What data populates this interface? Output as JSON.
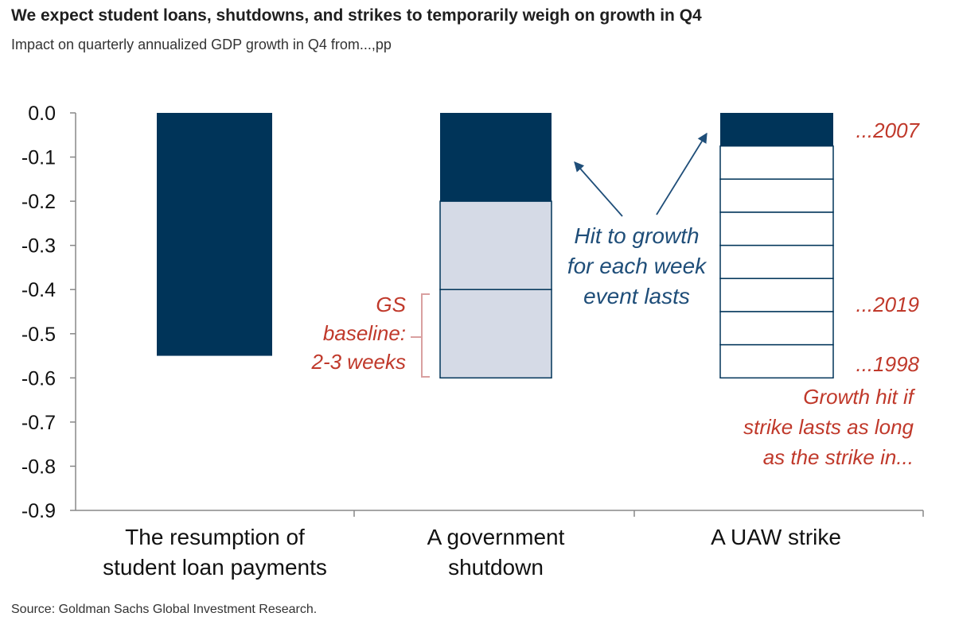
{
  "title": "We expect student loans, shutdowns, and strikes to temporarily weigh on growth in Q4",
  "subtitle": "Impact on quarterly annualized GDP growth in Q4 from...,pp",
  "source": "Source: Goldman Sachs Global Investment Research.",
  "colors": {
    "dark": "#003459",
    "light": "#d5dae6",
    "white": "#ffffff",
    "axis": "#888888",
    "annotation_red": "#c0392b",
    "annotation_blue": "#1f4e79"
  },
  "chart_data": {
    "type": "bar",
    "ylim": [
      -0.9,
      0.0
    ],
    "yticks": [
      "0.0",
      "-0.1",
      "-0.2",
      "-0.3",
      "-0.4",
      "-0.5",
      "-0.6",
      "-0.7",
      "-0.8",
      "-0.9"
    ],
    "categories": [
      [
        "The resumption of",
        "student loan payments"
      ],
      [
        "A government",
        "shutdown"
      ],
      [
        "A UAW strike"
      ]
    ],
    "bars": [
      {
        "category": 0,
        "segments": [
          {
            "from": 0.0,
            "to": -0.55,
            "style": "dark"
          }
        ]
      },
      {
        "category": 1,
        "segments": [
          {
            "from": 0.0,
            "to": -0.2,
            "style": "dark"
          },
          {
            "from": -0.2,
            "to": -0.4,
            "style": "light"
          },
          {
            "from": -0.4,
            "to": -0.6,
            "style": "light"
          }
        ]
      },
      {
        "category": 2,
        "segments": [
          {
            "from": 0.0,
            "to": -0.075,
            "style": "dark"
          },
          {
            "from": -0.075,
            "to": -0.15,
            "style": "white"
          },
          {
            "from": -0.15,
            "to": -0.225,
            "style": "white"
          },
          {
            "from": -0.225,
            "to": -0.3,
            "style": "white"
          },
          {
            "from": -0.3,
            "to": -0.375,
            "style": "white"
          },
          {
            "from": -0.375,
            "to": -0.45,
            "style": "white"
          },
          {
            "from": -0.45,
            "to": -0.525,
            "style": "white"
          },
          {
            "from": -0.525,
            "to": -0.6,
            "style": "white"
          }
        ]
      }
    ],
    "annotations": {
      "gs_baseline": [
        "GS",
        "baseline:",
        "2-3 weeks"
      ],
      "hit_per_week": [
        "Hit to growth",
        "for each week",
        "event lasts"
      ],
      "strike_2007": "...2007",
      "strike_2019": "...2019",
      "strike_1998": "...1998",
      "strike_note": [
        "Growth hit if",
        "strike lasts as long",
        "as the strike in..."
      ]
    }
  }
}
